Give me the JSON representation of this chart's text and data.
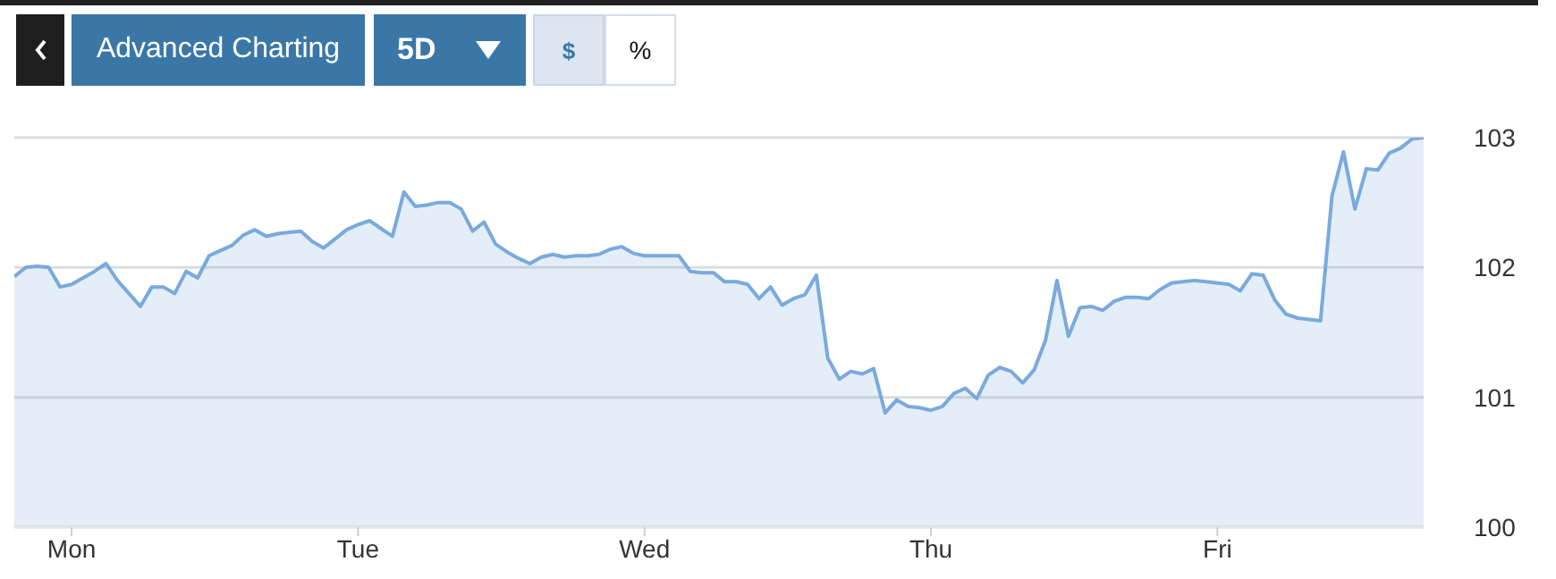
{
  "chart_data": {
    "type": "area",
    "annotations": [
      "Advanced Charting",
      "5D",
      "$",
      "%"
    ],
    "categories": [
      null,
      null,
      null,
      null,
      null,
      "Mon",
      null,
      null,
      null,
      null,
      null,
      null,
      null,
      null,
      null,
      null,
      null,
      null,
      null,
      null,
      null,
      null,
      null,
      null,
      null,
      null,
      null,
      null,
      null,
      null,
      "Tue",
      null,
      null,
      null,
      null,
      null,
      null,
      null,
      null,
      null,
      null,
      null,
      null,
      null,
      null,
      null,
      null,
      null,
      null,
      null,
      null,
      null,
      null,
      null,
      null,
      "Wed",
      null,
      null,
      null,
      null,
      null,
      null,
      null,
      null,
      null,
      null,
      null,
      null,
      null,
      null,
      null,
      null,
      null,
      null,
      null,
      null,
      null,
      null,
      null,
      null,
      "Thu",
      null,
      null,
      null,
      null,
      null,
      null,
      null,
      null,
      null,
      null,
      null,
      null,
      null,
      null,
      null,
      null,
      null,
      null,
      null,
      null,
      null,
      null,
      null,
      null,
      "Fri",
      null,
      null,
      null,
      null,
      null,
      null,
      null,
      null,
      null,
      null,
      null,
      null,
      null,
      null,
      null,
      null,
      null,
      null
    ],
    "series": [
      {
        "color": "#7aaadc",
        "values": [
          101.93,
          102.0,
          102.01,
          102.0,
          101.85,
          101.87,
          101.92,
          101.97,
          102.03,
          101.9,
          101.8,
          101.7,
          101.85,
          101.85,
          101.8,
          101.97,
          101.92,
          102.09,
          102.13,
          102.17,
          102.25,
          102.29,
          102.24,
          102.26,
          102.27,
          102.28,
          102.2,
          102.15,
          102.22,
          102.29,
          102.33,
          102.36,
          102.3,
          102.24,
          102.58,
          102.47,
          102.48,
          102.5,
          102.5,
          102.45,
          102.28,
          102.35,
          102.18,
          102.12,
          102.07,
          102.03,
          102.08,
          102.1,
          102.08,
          102.09,
          102.09,
          102.1,
          102.14,
          102.16,
          102.11,
          102.09,
          102.09,
          102.09,
          102.09,
          101.97,
          101.96,
          101.96,
          101.89,
          101.89,
          101.87,
          101.76,
          101.85,
          101.71,
          101.76,
          101.79,
          101.94,
          101.3,
          101.14,
          101.2,
          101.18,
          101.22,
          100.88,
          100.98,
          100.93,
          100.92,
          100.9,
          100.93,
          101.03,
          101.07,
          100.99,
          101.17,
          101.23,
          101.2,
          101.11,
          101.21,
          101.44,
          101.9,
          101.47,
          101.69,
          101.7,
          101.67,
          101.74,
          101.77,
          101.77,
          101.76,
          101.83,
          101.88,
          101.89,
          101.9,
          101.89,
          101.88,
          101.87,
          101.82,
          101.95,
          101.94,
          101.75,
          101.64,
          101.61,
          101.6,
          101.59,
          102.55,
          102.89,
          102.45,
          102.76,
          102.75,
          102.88,
          102.92,
          102.99,
          103.0
        ]
      }
    ],
    "ylim": [
      100,
      103
    ],
    "yticks": [
      100,
      101,
      102,
      103
    ],
    "grid": "y"
  }
}
